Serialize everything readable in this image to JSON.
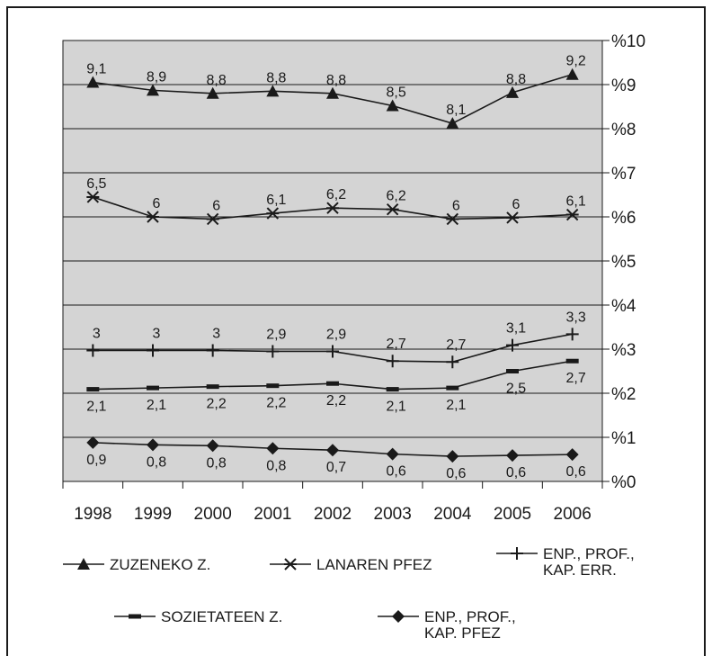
{
  "chart_data": {
    "type": "line",
    "categories": [
      "1998",
      "1999",
      "2000",
      "2001",
      "2002",
      "2003",
      "2004",
      "2005",
      "2006"
    ],
    "ylim": [
      0,
      10
    ],
    "y_ticks": [
      0,
      1,
      2,
      3,
      4,
      5,
      6,
      7,
      8,
      9,
      10
    ],
    "y_tick_labels": [
      "%0",
      "%1",
      "%2",
      "%3",
      "%4",
      "%5",
      "%6",
      "%7",
      "%8",
      "%9",
      "%10"
    ],
    "y_axis_side": "right",
    "grid": true,
    "plot_background": "#d4d4d4",
    "legend_position": "bottom",
    "series": [
      {
        "name": "ZUZENEKO Z.",
        "legend_lines": [
          "ZUZENEKO Z."
        ],
        "marker": "triangle",
        "values": [
          9.05,
          8.87,
          8.8,
          8.85,
          8.8,
          8.52,
          8.12,
          8.82,
          9.23
        ],
        "labels": [
          "9,1",
          "8,9",
          "8,8",
          "8,8",
          "8,8",
          "8,5",
          "8,1",
          "8,8",
          "9,2"
        ]
      },
      {
        "name": "LANAREN PFEZ",
        "legend_lines": [
          "LANAREN PFEZ"
        ],
        "marker": "asterisk",
        "values": [
          6.45,
          6.0,
          5.95,
          6.08,
          6.2,
          6.17,
          5.95,
          5.98,
          6.05
        ],
        "labels": [
          "6,5",
          "6",
          "6",
          "6,1",
          "6,2",
          "6,2",
          "6",
          "6",
          "6,1"
        ]
      },
      {
        "name": "ENP., PROF., KAP. ERR.",
        "legend_lines": [
          "ENP., PROF.,",
          "KAP. ERR."
        ],
        "marker": "plus",
        "values": [
          2.97,
          2.97,
          2.97,
          2.95,
          2.95,
          2.73,
          2.71,
          3.09,
          3.34
        ],
        "labels": [
          "3",
          "3",
          "3",
          "2,9",
          "2,9",
          "2,7",
          "2,7",
          "3,1",
          "3,3"
        ]
      },
      {
        "name": "SOZIETATEEN Z.",
        "legend_lines": [
          "SOZIETATEEN Z."
        ],
        "marker": "dash",
        "values": [
          2.09,
          2.12,
          2.15,
          2.17,
          2.22,
          2.09,
          2.12,
          2.5,
          2.73
        ],
        "labels": [
          "2,1",
          "2,1",
          "2,2",
          "2,2",
          "2,2",
          "2,1",
          "2,1",
          "2,5",
          "2,7"
        ]
      },
      {
        "name": "ENP., PROF., KAP. PFEZ",
        "legend_lines": [
          "ENP., PROF.,",
          "KAP. PFEZ"
        ],
        "marker": "diamond",
        "values": [
          0.88,
          0.83,
          0.81,
          0.75,
          0.71,
          0.62,
          0.57,
          0.59,
          0.61
        ],
        "labels": [
          "0,9",
          "0,8",
          "0,8",
          "0,8",
          "0,7",
          "0,6",
          "0,6",
          "0,6",
          "0,6"
        ]
      }
    ]
  }
}
